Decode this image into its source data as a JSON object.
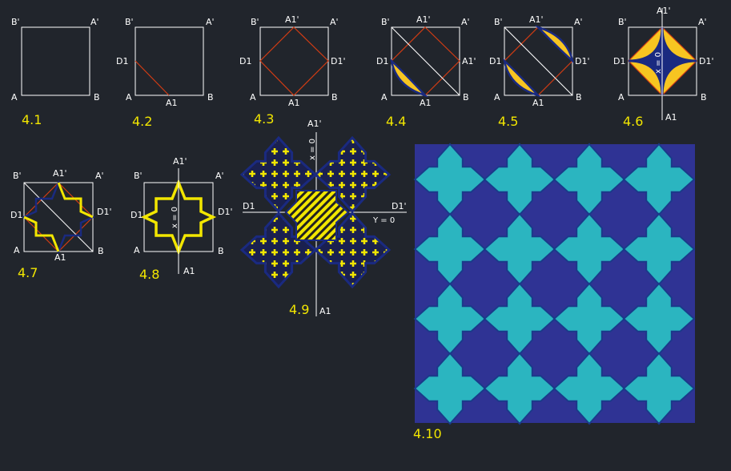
{
  "panels": [
    {
      "id": "4.1",
      "labels": {
        "tl": "B'",
        "tr": "A'",
        "bl": "A",
        "br": "B"
      }
    },
    {
      "id": "4.2",
      "labels": {
        "tl": "B'",
        "tr": "A'",
        "bl": "A",
        "br": "B",
        "ml": "D1",
        "bm": "A1"
      }
    },
    {
      "id": "4.3",
      "labels": {
        "tl": "B'",
        "tr": "A'",
        "bl": "A",
        "br": "B",
        "ml": "D1",
        "mr": "D1'",
        "tm": "A1'",
        "bm": "A1"
      }
    },
    {
      "id": "4.4",
      "labels": {
        "tl": "B'",
        "tr": "A'",
        "bl": "A",
        "br": "B",
        "ml": "D1",
        "mr": "A1'",
        "tm": "A1'",
        "bm": "A1"
      }
    },
    {
      "id": "4.5",
      "labels": {
        "tl": "B'",
        "tr": "A'",
        "bl": "A",
        "br": "B",
        "ml": "D1",
        "mr": "D1'",
        "tm": "A1'",
        "bm": "A1"
      }
    },
    {
      "id": "4.6",
      "labels": {
        "tl": "B'",
        "tr": "A'",
        "bl": "A",
        "br": "B",
        "ml": "D1",
        "mr": "D1'",
        "tm": "A1'",
        "bm": "A1",
        "axis": "x = 0"
      }
    },
    {
      "id": "4.7",
      "labels": {
        "tl": "B'",
        "tr": "A'",
        "bl": "A",
        "br": "B",
        "ml": "D1",
        "mr": "D1'",
        "tm": "A1'",
        "bm": "A1"
      }
    },
    {
      "id": "4.8",
      "labels": {
        "tl": "B'",
        "tr": "A'",
        "bl": "A",
        "br": "B",
        "ml": "D1",
        "mr": "D1'",
        "tm": "A1'",
        "bm": "A1",
        "axis": "x = 0"
      }
    },
    {
      "id": "4.9",
      "labels": {
        "top": "A1'",
        "bottom": "A1",
        "left": "D1",
        "right": "D1'",
        "xaxis": "x = 0",
        "yaxis": "Y = 0"
      }
    },
    {
      "id": "4.10"
    }
  ],
  "colors": {
    "background": "#21252c",
    "line": "#ffffff",
    "construction": "#d23c14",
    "gold": "#f7c521",
    "navy": "#1a2a80",
    "outline": "#2a2fa0",
    "yellow": "#f2e600",
    "tile_bg": "#2f3394",
    "tile_cross": "#2bb5c0",
    "tile_stroke": "#1a3a8a"
  }
}
